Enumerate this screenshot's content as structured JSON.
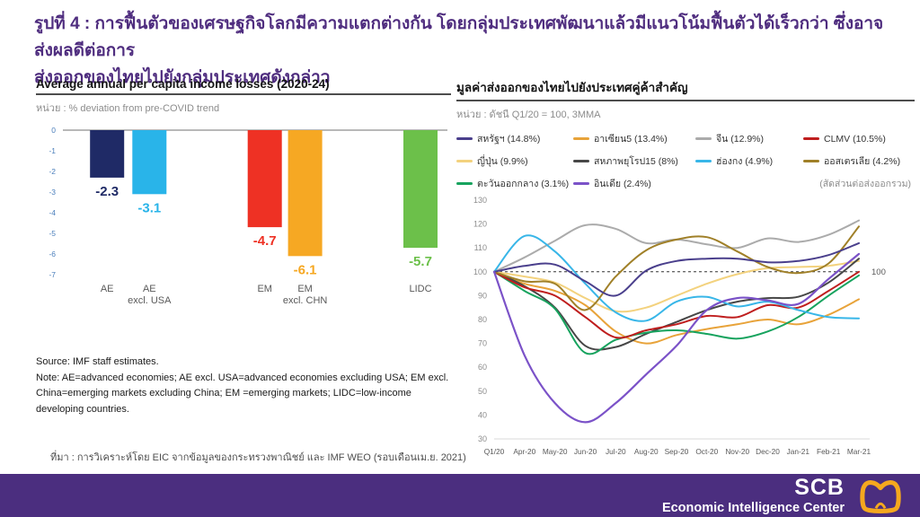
{
  "header": {
    "title_line1": "รูปที่ 4 : การฟื้นตัวของเศรษฐกิจโลกมีความแตกต่างกัน โดยกลุ่มประเทศพัฒนาแล้วมีแนวโน้มฟื้นตัวได้เร็วกว่า ซึ่งอาจส่งผลดีต่อการ",
    "title_line2": "ส่งออกของไทยไปยังกลุ่มประเทศดังกล่าว"
  },
  "left_panel": {
    "title": "Average annual per capita income losses (2020-24)",
    "unit": "หน่วย : % deviation from pre-COVID trend",
    "source": "Source: IMF staff estimates.",
    "note": "Note: AE=advanced economies; AE excl. USA=advanced economies excluding USA; EM excl. China=emerging markets excluding China; EM =emerging markets; LIDC=low-income developing countries.",
    "footnote": "ที่มา : การวิเคราะห์โดย EIC จากข้อมูลของกระทรวงพาณิชย์ และ IMF WEO (รอบเดือนเม.ย. 2021)"
  },
  "right_panel": {
    "title": "มูลค่าส่งออกของไทยไปยังประเทศคู่ค้าสำคัญ",
    "unit": "หน่วย : ดัชนี Q1/20 = 100, 3MMA",
    "legend_note": "(สัดส่วนต่อส่งออกรวม)"
  },
  "footer": {
    "brand": "SCB",
    "subbrand": "Economic Intelligence Center"
  },
  "colors": {
    "title_purple": "#4f2d7f",
    "footer_purple": "#4b2e7f",
    "logo_orange": "#f5a81e",
    "bar_axis_blue": "#4a7ebb"
  },
  "chart_data": [
    {
      "type": "bar",
      "title": "Average annual per capita income losses (2020-24)",
      "ylabel": "% deviation from pre-COVID trend",
      "categories": [
        "AE",
        "AE excl. USA",
        "EM",
        "EM excl. CHN",
        "LIDC"
      ],
      "category_lines": [
        [
          "AE"
        ],
        [
          "AE",
          "excl. USA"
        ],
        [
          "EM"
        ],
        [
          "EM",
          "excl. CHN"
        ],
        [
          "LIDC"
        ]
      ],
      "values": [
        -2.3,
        -3.1,
        -4.7,
        -6.1,
        -5.7
      ],
      "bar_colors": [
        "#1f2a66",
        "#29b4e9",
        "#ee3124",
        "#f6a823",
        "#6cc04a"
      ],
      "ylim": [
        -7,
        0
      ],
      "yticks": [
        0,
        -1,
        -2,
        -3,
        -4,
        -5,
        -6,
        -7
      ],
      "x_positions": [
        0.115,
        0.225,
        0.525,
        0.63,
        0.93
      ],
      "grid": false
    },
    {
      "type": "line",
      "title": "มูลค่าส่งออกของไทยไปยังประเทศคู่ค้าสำคัญ",
      "unit_label": "ดัชนี Q1/20 = 100, 3MMA",
      "x": [
        "Q1/20",
        "Apr-20",
        "May-20",
        "Jun-20",
        "Jul-20",
        "Aug-20",
        "Sep-20",
        "Oct-20",
        "Nov-20",
        "Dec-20",
        "Jan-21",
        "Feb-21",
        "Mar-21"
      ],
      "ylim": [
        30,
        130
      ],
      "yticks": [
        30,
        40,
        50,
        60,
        70,
        80,
        90,
        100,
        110,
        120,
        130
      ],
      "ref_line": 100,
      "legend_position": "top",
      "grid": false,
      "series": [
        {
          "name": "สหรัฐฯ (14.8%)",
          "color": "#4a3f8c",
          "values": [
            100,
            102.5,
            103,
            96,
            90,
            100.5,
            104.5,
            105.5,
            105.5,
            104,
            104.5,
            107,
            112
          ]
        },
        {
          "name": "อาเซียน5 (13.4%)",
          "color": "#e8a33a",
          "values": [
            100,
            95,
            92,
            86,
            75,
            70,
            73.5,
            76,
            78,
            80,
            78,
            82,
            88.5
          ]
        },
        {
          "name": "จีน (12.9%)",
          "color": "#ababab",
          "values": [
            100,
            106,
            113,
            119.5,
            118,
            112,
            113.5,
            111.5,
            110,
            114,
            112.5,
            115.5,
            121.5
          ]
        },
        {
          "name": "CLMV (10.5%)",
          "color": "#bf1e1e",
          "values": [
            100,
            93.5,
            90,
            81,
            72.5,
            75.5,
            78,
            81.5,
            81,
            86,
            85,
            92,
            100
          ]
        },
        {
          "name": "ญี่ปุ่น (9.9%)",
          "color": "#f3d27e",
          "values": [
            100,
            98,
            95.5,
            89,
            83.5,
            85,
            90,
            95,
            99,
            101.5,
            102,
            102.5,
            104.5
          ]
        },
        {
          "name": "สหภาพยุโรป15 (8%)",
          "color": "#474747",
          "values": [
            100,
            94,
            85,
            69,
            68.5,
            74,
            79,
            84,
            87.5,
            89,
            89.5,
            95.5,
            105.5
          ]
        },
        {
          "name": "ฮ่องกง (4.9%)",
          "color": "#38b6e8",
          "values": [
            100,
            115,
            108.5,
            95,
            83,
            79.5,
            87.5,
            89.5,
            85.5,
            87.5,
            84,
            81,
            80.5
          ]
        },
        {
          "name": "ออสเตรเลีย (4.2%)",
          "color": "#a08028",
          "values": [
            100,
            96,
            95,
            84,
            98,
            109,
            113.5,
            114.5,
            108.5,
            102,
            99.5,
            103.5,
            119
          ]
        },
        {
          "name": "ตะวันออกกลาง (3.1%)",
          "color": "#17a35e",
          "values": [
            100,
            92,
            84.5,
            66,
            71.5,
            74.5,
            75.5,
            74,
            72,
            75,
            81,
            90,
            98.5
          ]
        },
        {
          "name": "อินเดีย (2.4%)",
          "color": "#7b52c8",
          "values": [
            100,
            65,
            45,
            37,
            45,
            57,
            69,
            84,
            89,
            88,
            86.5,
            97,
            107.5
          ]
        }
      ],
      "annotation": "(สัดส่วนต่อส่งออกรวม)"
    }
  ]
}
